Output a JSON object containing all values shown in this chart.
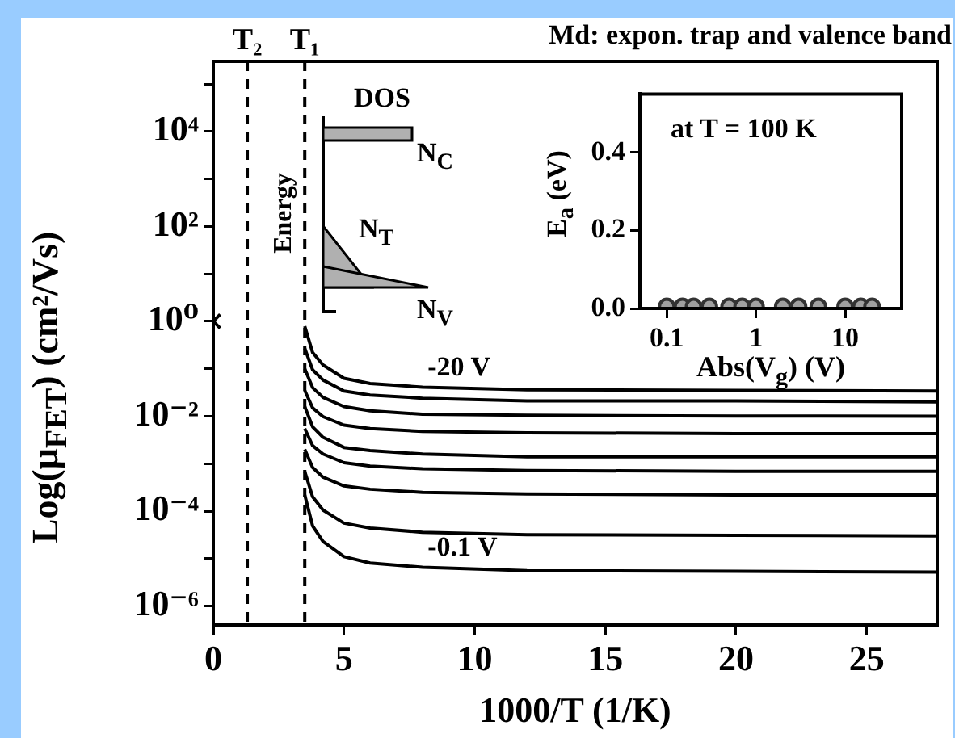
{
  "chart_data": [
    {
      "type": "line",
      "title": "Md: expon. trap and valence band",
      "xlabel": "1000/T (1/K)",
      "ylabel": "Log(μ$_{FET}$) (cm²/Vs)",
      "x": [
        3.5,
        3.8,
        4.2,
        5,
        6,
        8,
        12,
        20,
        27.7
      ],
      "xlim": [
        0,
        27.7
      ],
      "xticks": [
        0,
        5,
        10,
        15,
        20,
        25
      ],
      "ylim": [
        4e-07,
        300000.0
      ],
      "yticks": [
        {
          "value": 1e-06,
          "label": "10⁻⁶"
        },
        {
          "value": 1e-05,
          "label": null
        },
        {
          "value": 0.0001,
          "label": "10⁻⁴"
        },
        {
          "value": 0.001,
          "label": null
        },
        {
          "value": 0.01,
          "label": "10⁻²"
        },
        {
          "value": 0.1,
          "label": null
        },
        {
          "value": 1,
          "label": "10⁰"
        },
        {
          "value": 10,
          "label": null
        },
        {
          "value": 100,
          "label": "10²"
        },
        {
          "value": 1000,
          "label": null
        },
        {
          "value": 10000,
          "label": "10⁴"
        },
        {
          "value": 100000,
          "label": null
        }
      ],
      "log": "y",
      "grid": false,
      "marker": "none",
      "line_style": "solid",
      "series": [
        {
          "color": "#000000",
          "values": [
            0.79,
            0.22,
            0.12,
            0.063,
            0.049,
            0.041,
            0.036,
            0.035,
            0.034
          ]
        },
        {
          "color": "#000000",
          "values": [
            0.27,
            0.095,
            0.058,
            0.034,
            0.028,
            0.024,
            0.021,
            0.021,
            0.02
          ]
        },
        {
          "color": "#000000",
          "values": [
            0.1,
            0.04,
            0.025,
            0.016,
            0.013,
            0.011,
            0.0105,
            0.0101,
            0.01
          ]
        },
        {
          "color": "#000000",
          "values": [
            0.035,
            0.015,
            0.0098,
            0.0065,
            0.0055,
            0.0048,
            0.0045,
            0.0043,
            0.0043
          ]
        },
        {
          "color": "#000000",
          "values": [
            0.016,
            0.006,
            0.0036,
            0.0022,
            0.0019,
            0.0016,
            0.0014,
            0.0014,
            0.0014
          ]
        },
        {
          "color": "#000000",
          "values": [
            0.0055,
            0.0024,
            0.0016,
            0.00105,
            0.00089,
            0.00078,
            0.00072,
            0.00069,
            0.00069
          ]
        },
        {
          "color": "#000000",
          "values": [
            0.002,
            0.00083,
            0.00052,
            0.00034,
            0.00029,
            0.00025,
            0.00023,
            0.00022,
            0.00022
          ]
        },
        {
          "color": "#000000",
          "values": [
            0.00069,
            0.0002,
            0.000105,
            5.6e-05,
            4.4e-05,
            3.6e-05,
            3.2e-05,
            3.1e-05,
            3e-05
          ]
        },
        {
          "color": "#000000",
          "values": [
            0.00022,
            4.9e-05,
            2.3e-05,
            1.1e-05,
            8.1e-06,
            6.6e-06,
            5.6e-06,
            5.4e-06,
            5.2e-06
          ]
        },
        {
          "type": "scatter",
          "x": [
            0
          ],
          "values": [
            1
          ],
          "marker": "cross",
          "color": "#000000"
        }
      ],
      "ref_lines": [
        {
          "axis": "x",
          "value": 1.3,
          "label": "T₂",
          "line_style": "dashed",
          "color": "#000000"
        },
        {
          "axis": "x",
          "value": 3.5,
          "label": "T₁",
          "line_style": "dashed",
          "color": "#000000"
        }
      ],
      "annotations": [
        {
          "text": "-20 V",
          "x": 8.2,
          "y": 0.041
        },
        {
          "text": "-0.1 V",
          "x": 8.2,
          "y": 6.6e-06
        },
        "DOS",
        "Energy",
        "N$_{C}$",
        "N$_{T}$",
        "N$_{V}$"
      ]
    },
    {
      "type": "scatter",
      "xlabel": "Abs(V$_{g}$) (V)",
      "ylabel": "E$_{a}$ (eV)",
      "x": [
        0.1,
        0.15,
        0.2,
        0.3,
        0.5,
        0.7,
        1,
        2,
        3,
        5,
        10,
        15,
        20
      ],
      "values": [
        0.005,
        0.005,
        0.005,
        0.005,
        0.005,
        0.005,
        0.005,
        0.005,
        0.005,
        0.005,
        0.005,
        0.005,
        0.005
      ],
      "color": "#a0a0a0",
      "marker": "circle",
      "log": "x",
      "xlim": [
        0.05,
        43
      ],
      "xticks": [
        0.1,
        1,
        10
      ],
      "ylim": [
        0,
        0.55
      ],
      "yticks": [
        {
          "value": 0,
          "label": "0.0"
        },
        0.2,
        0.4
      ],
      "grid": false,
      "annotations": [
        "at T = 100 K"
      ]
    }
  ]
}
